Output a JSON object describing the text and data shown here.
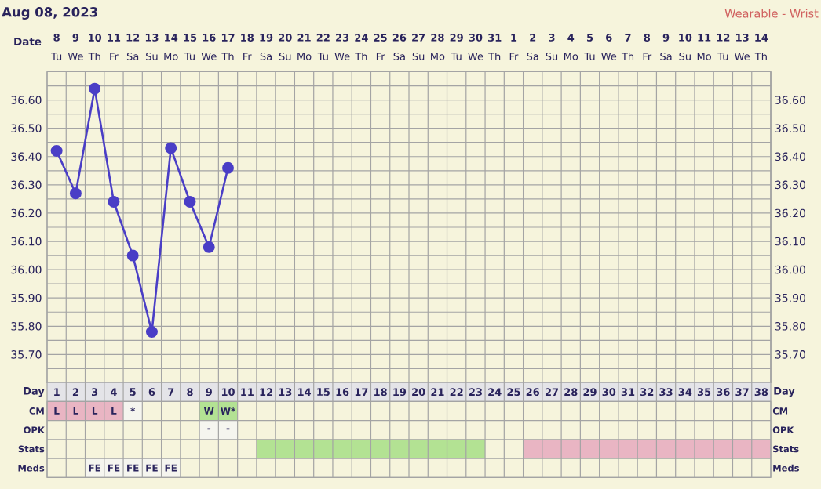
{
  "chart_data": [
    {
      "type": "line",
      "title": "Aug 08, 2023",
      "annotations": [
        "Wearable - Wrist"
      ],
      "xlabel": "Date",
      "categories": [
        "**8** Tu",
        "**9** We",
        "**10** Th",
        "**11** Fr",
        "**12** Sa",
        "**13** Su",
        "**14** Mo",
        "**15** Tu",
        "**16** We",
        "**17** Th",
        "**18** Fr",
        "**19** Sa",
        "**20** Su",
        "**21** Mo",
        "**22** Tu",
        "**23** We",
        "**24** Th",
        "**25** Fr",
        "**26** Sa",
        "**27** Su",
        "**28** Mo",
        "**29** Tu",
        "**30** We",
        "**31** Th",
        "**1** Fr",
        "**2** Sa",
        "**3** Su",
        "**4** Mo",
        "**5** Tu",
        "**6** We",
        "**7** Th",
        "**8** Fr",
        "**9** Sa",
        "**10** Su",
        "**11** Mo",
        "**12** Tu",
        "**13** We",
        "**14** Th"
      ],
      "series": [
        {
          "color": "#4a3ec6",
          "values": [
            36.42,
            36.27,
            36.64,
            36.24,
            36.05,
            35.78,
            36.43,
            36.24,
            36.08,
            36.36,
            null,
            null,
            null,
            null,
            null,
            null,
            null,
            null,
            null,
            null,
            null,
            null,
            null,
            null,
            null,
            null,
            null,
            null,
            null,
            null,
            null,
            null,
            null,
            null,
            null,
            null,
            null,
            null
          ]
        }
      ],
      "ylim": [
        35.6,
        36.7
      ],
      "yticks": [
        {
          "value": 35.65,
          "label": null
        },
        {
          "value": 35.7,
          "label": "35.70"
        },
        {
          "value": 35.75,
          "label": null
        },
        {
          "value": 35.8,
          "label": "35.80"
        },
        {
          "value": 35.85,
          "label": null
        },
        {
          "value": 35.9,
          "label": "35.90"
        },
        {
          "value": 35.95,
          "label": null
        },
        {
          "value": 36.0,
          "label": "36.00"
        },
        {
          "value": 36.05,
          "label": null
        },
        {
          "value": 36.1,
          "label": "36.10"
        },
        {
          "value": 36.15,
          "label": null
        },
        {
          "value": 36.2,
          "label": "36.20"
        },
        {
          "value": 36.25,
          "label": null
        },
        {
          "value": 36.3,
          "label": "36.30"
        },
        {
          "value": 36.35,
          "label": null
        },
        {
          "value": 36.4,
          "label": "36.40"
        },
        {
          "value": 36.45,
          "label": null
        },
        {
          "value": 36.5,
          "label": "36.50"
        },
        {
          "value": 36.55,
          "label": null
        },
        {
          "value": 36.6,
          "label": "36.60"
        },
        {
          "value": 36.65,
          "label": null
        }
      ],
      "y2lim": [
        35.6,
        36.7
      ],
      "y2ticks": [
        {
          "value": 35.65,
          "label": null
        },
        {
          "value": 35.7,
          "label": "35.70"
        },
        {
          "value": 35.75,
          "label": null
        },
        {
          "value": 35.8,
          "label": "35.80"
        },
        {
          "value": 35.85,
          "label": null
        },
        {
          "value": 35.9,
          "label": "35.90"
        },
        {
          "value": 35.95,
          "label": null
        },
        {
          "value": 36.0,
          "label": "36.00"
        },
        {
          "value": 36.05,
          "label": null
        },
        {
          "value": 36.1,
          "label": "36.10"
        },
        {
          "value": 36.15,
          "label": null
        },
        {
          "value": 36.2,
          "label": "36.20"
        },
        {
          "value": 36.25,
          "label": null
        },
        {
          "value": 36.3,
          "label": "36.30"
        },
        {
          "value": 36.35,
          "label": null
        },
        {
          "value": 36.4,
          "label": "36.40"
        },
        {
          "value": 36.45,
          "label": null
        },
        {
          "value": 36.5,
          "label": "36.50"
        },
        {
          "value": 36.55,
          "label": null
        },
        {
          "value": 36.6,
          "label": "36.60"
        },
        {
          "value": 36.65,
          "label": null
        }
      ],
      "grid": true,
      "marker": "circle"
    },
    {
      "type": "bar",
      "orientation": "horizontal",
      "xlabel": "Day",
      "categories": [
        "CM",
        "OPK",
        "Stats",
        "Meds"
      ],
      "series": [
        {
          "color": "#e9b5c3",
          "base": [
            0.5,
            null,
            25.5,
            null
          ],
          "values": [
            4,
            null,
            13,
            null
          ]
        },
        {
          "color": "#b3e293",
          "base": [
            8.5,
            null,
            11.5,
            null
          ],
          "values": [
            2,
            null,
            12,
            null
          ]
        },
        {
          "color": "#f5f5ef",
          "base": [
            4.5,
            8.5,
            null,
            2.5
          ],
          "values": [
            1,
            2,
            null,
            5
          ]
        }
      ],
      "xlim": [
        0.5,
        38.5
      ],
      "xticks": [
        1,
        2,
        3,
        4,
        5,
        6,
        7,
        8,
        9,
        10,
        11,
        12,
        13,
        14,
        15,
        16,
        17,
        18,
        19,
        20,
        21,
        22,
        23,
        24,
        25,
        26,
        27,
        28,
        29,
        30,
        31,
        32,
        33,
        34,
        35,
        36,
        37,
        38
      ],
      "grid": true,
      "annotations": [
        {
          "text": "L",
          "x": 1,
          "y": "CM"
        },
        {
          "text": "L",
          "x": 2,
          "y": "CM"
        },
        {
          "text": "L",
          "x": 3,
          "y": "CM"
        },
        {
          "text": "L",
          "x": 4,
          "y": "CM"
        },
        {
          "text": "*",
          "x": 5,
          "y": "CM"
        },
        {
          "text": "W",
          "x": 9,
          "y": "CM"
        },
        {
          "text": "W*",
          "x": 10,
          "y": "CM"
        },
        {
          "text": "-",
          "x": 9,
          "y": "OPK"
        },
        {
          "text": "-",
          "x": 10,
          "y": "OPK"
        },
        {
          "text": "FE",
          "x": 3,
          "y": "Meds"
        },
        {
          "text": "FE",
          "x": 4,
          "y": "Meds"
        },
        {
          "text": "FE",
          "x": 5,
          "y": "Meds"
        },
        {
          "text": "FE",
          "x": 6,
          "y": "Meds"
        },
        {
          "text": "FE",
          "x": 7,
          "y": "Meds"
        }
      ]
    }
  ]
}
